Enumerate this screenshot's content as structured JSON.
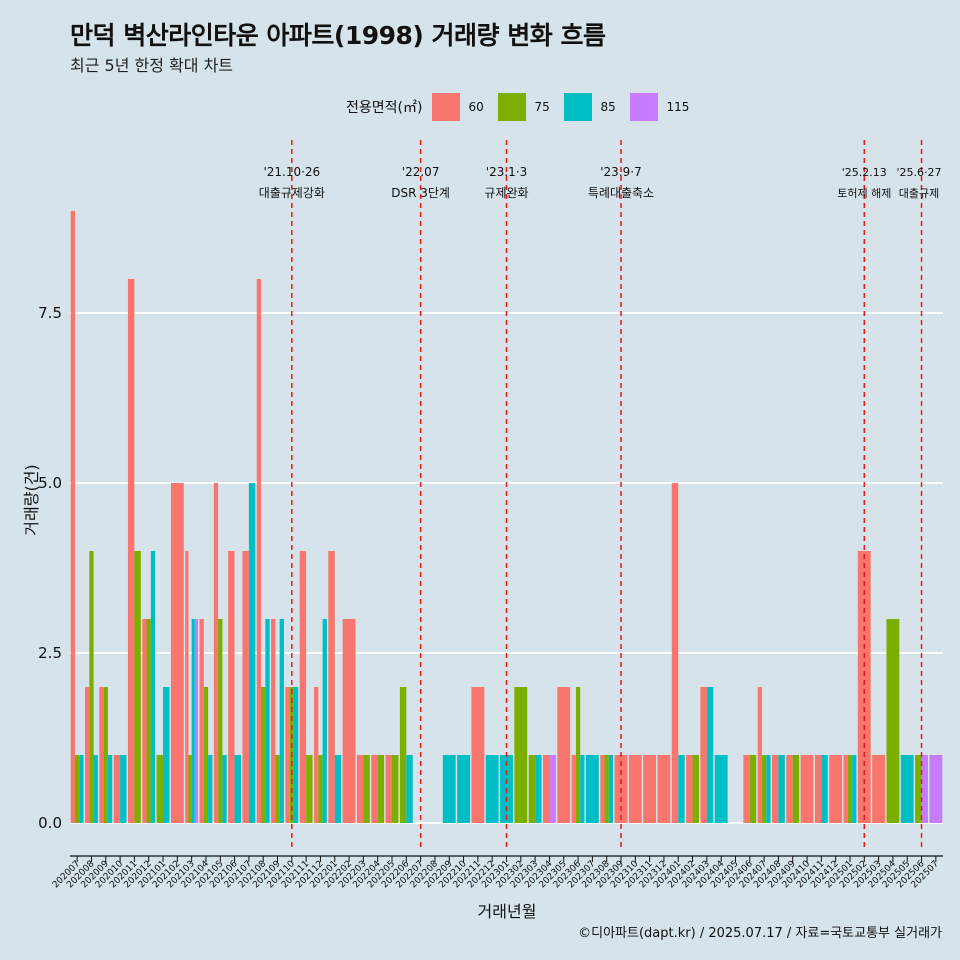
{
  "header": {
    "title": "만덕 벽산라인타운 아파트(1998) 거래량 변화 흐름",
    "subtitle": "최근 5년 한정 확대 차트"
  },
  "legend": {
    "title": "전용면적(㎡)",
    "items": [
      {
        "label": "60",
        "color": "#f8766d"
      },
      {
        "label": "75",
        "color": "#7cae00"
      },
      {
        "label": "85",
        "color": "#00bfc4"
      },
      {
        "label": "115",
        "color": "#c77cff"
      }
    ]
  },
  "caption": "©디아파트(dapt.kr) / 2025.07.17 / 자료=국토교통부 실거래가",
  "chart_data": {
    "type": "bar",
    "title": "만덕 벽산라인타운 아파트(1998) 거래량 변화 흐름",
    "subtitle": "최근 5년 한정 확대 차트",
    "xlabel": "거래년월",
    "ylabel": "거래량(건)",
    "ylim": [
      0,
      9
    ],
    "yticks": [
      0.0,
      2.5,
      5.0,
      7.5
    ],
    "ytick_labels": [
      "0.0",
      "2.5",
      "5.0",
      "7.5"
    ],
    "grid": true,
    "legend_position": "top",
    "categories": [
      "202007",
      "202008",
      "202009",
      "202010",
      "202011",
      "202012",
      "202101",
      "202102",
      "202103",
      "202104",
      "202105",
      "202106",
      "202107",
      "202108",
      "202109",
      "202110",
      "202111",
      "202112",
      "202201",
      "202202",
      "202203",
      "202204",
      "202205",
      "202206",
      "202207",
      "202208",
      "202209",
      "202210",
      "202211",
      "202212",
      "202301",
      "202302",
      "202303",
      "202304",
      "202305",
      "202306",
      "202307",
      "202308",
      "202309",
      "202310",
      "202311",
      "202312",
      "202401",
      "202402",
      "202403",
      "202404",
      "202405",
      "202406",
      "202407",
      "202408",
      "202409",
      "202410",
      "202411",
      "202412",
      "202501",
      "202502",
      "202503",
      "202504",
      "202505",
      "202506",
      "202507"
    ],
    "series": [
      {
        "name": "60",
        "color": "#f8766d",
        "values": [
          9,
          2,
          2,
          1,
          8,
          3,
          0,
          5,
          4,
          3,
          5,
          4,
          4,
          8,
          3,
          2,
          4,
          2,
          4,
          3,
          1,
          1,
          1,
          0,
          0,
          0,
          0,
          0,
          2,
          0,
          0,
          0,
          0,
          1,
          2,
          1,
          0,
          1,
          1,
          1,
          1,
          1,
          5,
          1,
          2,
          0,
          0,
          1,
          2,
          1,
          1,
          1,
          1,
          1,
          1,
          4,
          1,
          0,
          0,
          0,
          0
        ]
      },
      {
        "name": "75",
        "color": "#7cae00",
        "values": [
          1,
          4,
          2,
          0,
          4,
          3,
          1,
          0,
          1,
          2,
          3,
          0,
          0,
          2,
          1,
          2,
          1,
          1,
          0,
          0,
          1,
          1,
          1,
          2,
          0,
          0,
          0,
          0,
          0,
          0,
          0,
          2,
          1,
          0,
          0,
          2,
          0,
          1,
          0,
          0,
          0,
          0,
          0,
          1,
          0,
          0,
          0,
          1,
          1,
          0,
          1,
          0,
          0,
          0,
          1,
          0,
          0,
          3,
          0,
          1,
          0
        ]
      },
      {
        "name": "85",
        "color": "#00bfc4",
        "values": [
          1,
          1,
          1,
          1,
          0,
          4,
          2,
          0,
          3,
          1,
          1,
          1,
          5,
          3,
          3,
          2,
          0,
          3,
          1,
          0,
          0,
          0,
          0,
          1,
          0,
          0,
          1,
          1,
          0,
          1,
          1,
          0,
          1,
          0,
          0,
          1,
          1,
          1,
          0,
          0,
          0,
          0,
          1,
          0,
          2,
          1,
          0,
          0,
          1,
          1,
          0,
          0,
          1,
          0,
          1,
          0,
          0,
          0,
          1,
          0,
          0
        ]
      },
      {
        "name": "115",
        "color": "#c77cff",
        "values": [
          0,
          0,
          0,
          0,
          0,
          0,
          0,
          0,
          3,
          0,
          0,
          0,
          0,
          0,
          0,
          0,
          0,
          0,
          0,
          0,
          0,
          0,
          0,
          0,
          0,
          0,
          0,
          0,
          0,
          0,
          0,
          0,
          0,
          1,
          0,
          0,
          0,
          0,
          0,
          0,
          0,
          0,
          0,
          0,
          0,
          0,
          0,
          0,
          0,
          0,
          0,
          0,
          0,
          0,
          0,
          0,
          0,
          0,
          0,
          1,
          1
        ]
      }
    ],
    "events": [
      {
        "date": "202110",
        "label1": "'21.10·26",
        "label2": "대출규제강화"
      },
      {
        "date": "202207",
        "label1": "'22.07",
        "label2": "DSR 3단계"
      },
      {
        "date": "202301",
        "label1": "'23.1·3",
        "label2": "규제완화"
      },
      {
        "date": "202309",
        "label1": "'23.9·7",
        "label2": "특례대출축소"
      },
      {
        "date": "202502",
        "label1": "'25.2.13",
        "label2": "토허제 해제"
      },
      {
        "date": "202506",
        "label1": "'25.6·27",
        "label2": "대출규제"
      }
    ],
    "event_line_color": "#e31a1c"
  }
}
